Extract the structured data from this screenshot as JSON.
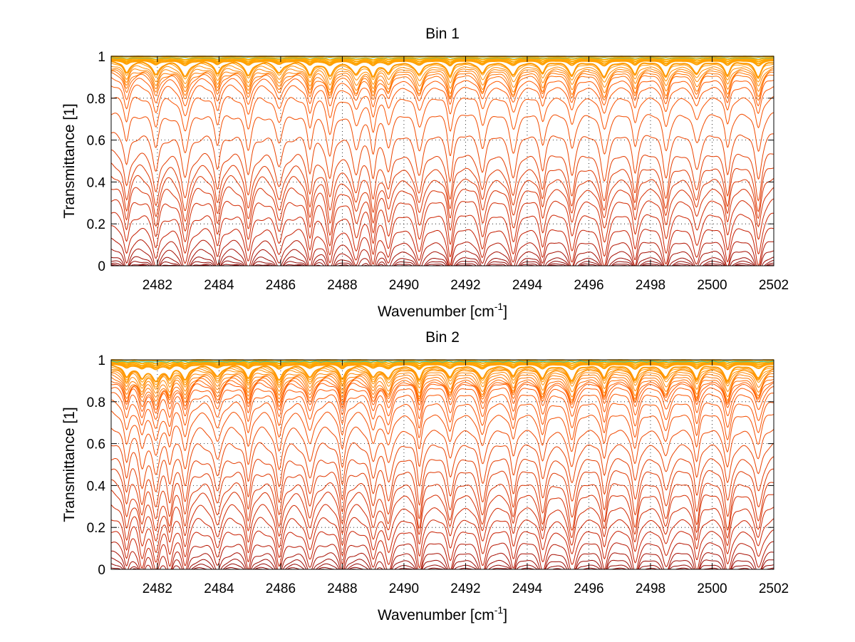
{
  "chart_data": [
    {
      "type": "line",
      "title": "Bin 1",
      "xlabel_main": "Wavenumber [cm",
      "xlabel_sup": "-1",
      "xlabel_end": "]",
      "ylabel": "Transmittance [1]",
      "xlim": [
        2480.5,
        2502
      ],
      "ylim": [
        0,
        1
      ],
      "xticks": [
        "2482",
        "2484",
        "2486",
        "2488",
        "2490",
        "2492",
        "2494",
        "2496",
        "2498",
        "2500",
        "2502"
      ],
      "yticks": [
        "0",
        "0.2",
        "0.4",
        "0.6",
        "0.8",
        "1"
      ],
      "grid": true,
      "line_centers": [
        2481.0,
        2481.95,
        2482.9,
        2483.95,
        2484.95,
        2485.95,
        2486.95,
        2487.6,
        2488.45,
        2489.0,
        2489.5,
        2490.5,
        2491.5,
        2492.55,
        2493.55,
        2494.5,
        2495.45,
        2496.5,
        2497.5,
        2498.5,
        2499.5,
        2500.5,
        2501.5
      ],
      "series_levels": [
        1.0,
        0.995,
        0.99,
        0.985,
        0.98,
        0.975,
        0.97,
        0.96,
        0.95,
        0.94,
        0.93,
        0.92,
        0.9,
        0.87,
        0.82,
        0.74,
        0.64,
        0.55,
        0.49,
        0.44,
        0.39,
        0.33,
        0.26,
        0.19,
        0.13,
        0.085,
        0.05,
        0.03,
        0.015,
        0.006,
        0.002,
        0.0
      ]
    },
    {
      "type": "line",
      "title": "Bin 2",
      "xlabel_main": "Wavenumber [cm",
      "xlabel_sup": "-1",
      "xlabel_end": "]",
      "ylabel": "Transmittance [1]",
      "xlim": [
        2480.5,
        2502
      ],
      "ylim": [
        0,
        1
      ],
      "xticks": [
        "2482",
        "2484",
        "2486",
        "2488",
        "2490",
        "2492",
        "2494",
        "2496",
        "2498",
        "2500",
        "2502"
      ],
      "yticks": [
        "0",
        "0.2",
        "0.4",
        "0.6",
        "0.8",
        "1"
      ],
      "grid": true,
      "line_centers": [
        2481.0,
        2481.5,
        2481.95,
        2482.4,
        2482.9,
        2483.95,
        2484.95,
        2485.95,
        2486.95,
        2488.0,
        2489.0,
        2489.5,
        2490.5,
        2491.5,
        2492.55,
        2493.55,
        2494.5,
        2495.45,
        2496.5,
        2497.5,
        2498.5,
        2499.5,
        2500.5,
        2501.5
      ],
      "series_levels": [
        1.0,
        0.995,
        0.99,
        0.985,
        0.98,
        0.975,
        0.97,
        0.965,
        0.96,
        0.95,
        0.94,
        0.93,
        0.92,
        0.91,
        0.9,
        0.88,
        0.85,
        0.81,
        0.76,
        0.69,
        0.62,
        0.55,
        0.49,
        0.43,
        0.38,
        0.32,
        0.26,
        0.2,
        0.14,
        0.09,
        0.055,
        0.03,
        0.012,
        0.004,
        0.0
      ]
    }
  ],
  "colors": {
    "high": "#ffb000",
    "mid": "#ff5a00",
    "low": "#c81e00",
    "bottom": "#8b0000",
    "top_accent": "#00c8c8",
    "axis": "#000000",
    "grid": "#000000"
  }
}
